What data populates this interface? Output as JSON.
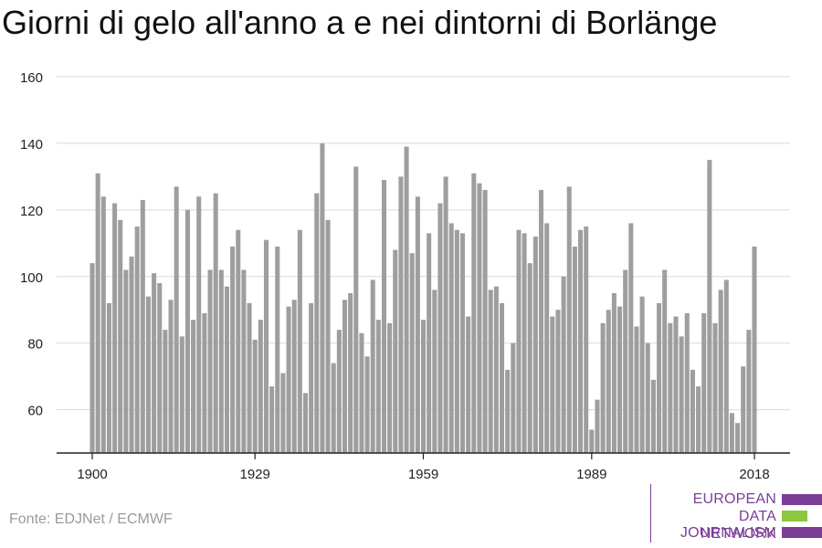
{
  "title": "Giorni di gelo all'anno a e nei dintorni di Borlänge",
  "source": "Fonte: EDJNet / ECMWF",
  "logo": {
    "lines": [
      "EUROPEAN",
      "DATA JOURNALISM",
      "NETWORK"
    ],
    "colors": [
      "#7a3e97",
      "#8dc63f",
      "#7a3e97"
    ]
  },
  "colors": {
    "bar": "#9e9e9e",
    "grid": "#d9d9d9",
    "axis": "#222222"
  },
  "chart_data": {
    "type": "bar",
    "x_start": 1900,
    "x_end": 2018,
    "xticks": [
      1900,
      1929,
      1959,
      1989,
      2018
    ],
    "yticks": [
      60,
      80,
      100,
      120,
      140,
      160
    ],
    "ylim": [
      47,
      160
    ],
    "grid": "horizontal",
    "values": [
      104,
      131,
      124,
      92,
      122,
      117,
      102,
      106,
      115,
      123,
      94,
      101,
      98,
      84,
      93,
      127,
      82,
      120,
      87,
      124,
      89,
      102,
      125,
      102,
      97,
      109,
      114,
      102,
      92,
      81,
      87,
      111,
      67,
      109,
      71,
      91,
      93,
      114,
      65,
      92,
      125,
      140,
      117,
      74,
      84,
      93,
      95,
      133,
      83,
      76,
      99,
      87,
      129,
      86,
      108,
      130,
      139,
      107,
      124,
      87,
      113,
      96,
      122,
      130,
      116,
      114,
      113,
      88,
      131,
      128,
      126,
      96,
      97,
      92,
      72,
      80,
      114,
      113,
      104,
      112,
      126,
      116,
      88,
      90,
      100,
      127,
      109,
      114,
      115,
      54,
      63,
      86,
      90,
      95,
      91,
      102,
      116,
      85,
      94,
      80,
      69,
      92,
      102,
      86,
      88,
      82,
      89,
      72,
      67,
      89,
      135,
      86,
      96,
      99,
      59,
      56,
      73,
      84,
      109
    ]
  }
}
